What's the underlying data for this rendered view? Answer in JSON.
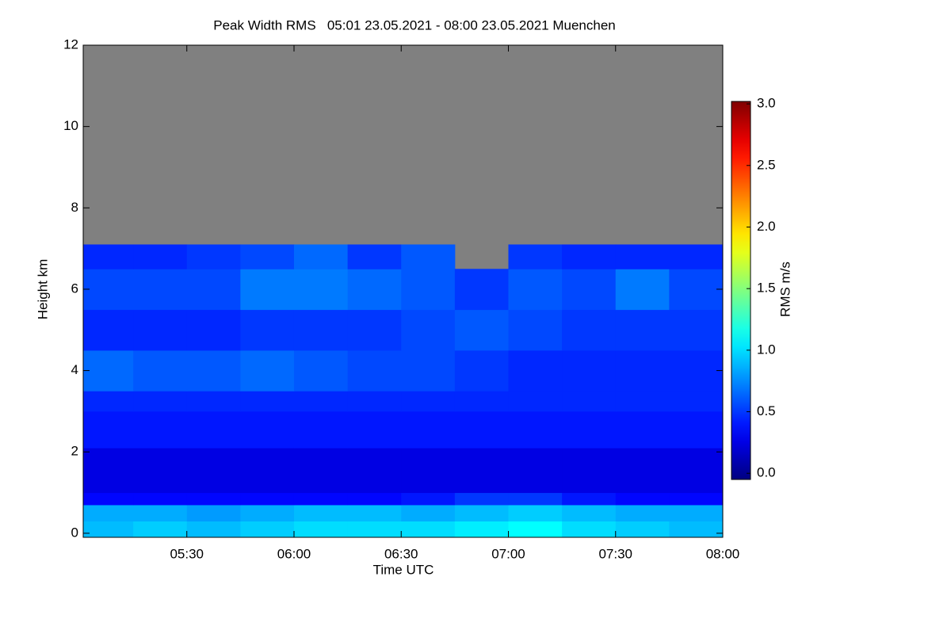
{
  "chart_data": {
    "type": "heatmap",
    "title": "Peak Width RMS   05:01 23.05.2021 - 08:00 23.05.2021 Muenchen",
    "x_label": "Time UTC",
    "y_label": "Height km",
    "colorbar_label": "RMS m/s",
    "colormap": "jet",
    "missing_color": "#808080",
    "x_edges": [
      5.0167,
      5.25,
      5.5,
      5.75,
      6.0,
      6.25,
      6.5,
      6.75,
      7.0,
      7.25,
      7.5,
      7.75,
      8.0
    ],
    "y_edges": [
      -0.1,
      0.3,
      0.7,
      1.0,
      2.1,
      3.0,
      3.5,
      4.5,
      5.5,
      6.5,
      7.1
    ],
    "values": [
      [
        0.9,
        0.95,
        0.9,
        0.95,
        1.0,
        1.0,
        1.0,
        1.05,
        1.1,
        1.0,
        0.95,
        0.9
      ],
      [
        0.85,
        0.85,
        0.8,
        0.85,
        0.9,
        0.9,
        0.85,
        0.9,
        0.95,
        0.9,
        0.85,
        0.85
      ],
      [
        0.35,
        0.35,
        0.35,
        0.35,
        0.35,
        0.35,
        0.4,
        0.5,
        0.5,
        0.4,
        0.35,
        0.35
      ],
      [
        0.25,
        0.25,
        0.25,
        0.25,
        0.25,
        0.25,
        0.25,
        0.25,
        0.25,
        0.25,
        0.25,
        0.25
      ],
      [
        0.4,
        0.4,
        0.4,
        0.4,
        0.4,
        0.4,
        0.4,
        0.4,
        0.4,
        0.4,
        0.4,
        0.4
      ],
      [
        0.45,
        0.45,
        0.45,
        0.45,
        0.45,
        0.45,
        0.45,
        0.45,
        0.45,
        0.45,
        0.45,
        0.45
      ],
      [
        0.65,
        0.6,
        0.6,
        0.65,
        0.6,
        0.55,
        0.55,
        0.5,
        0.45,
        0.45,
        0.45,
        0.45
      ],
      [
        0.45,
        0.45,
        0.45,
        0.5,
        0.5,
        0.5,
        0.55,
        0.6,
        0.55,
        0.5,
        0.5,
        0.5
      ],
      [
        0.55,
        0.55,
        0.55,
        0.7,
        0.7,
        0.65,
        0.6,
        0.5,
        0.6,
        0.55,
        0.7,
        0.55
      ],
      [
        0.45,
        0.45,
        0.5,
        0.55,
        0.65,
        0.5,
        0.6,
        null,
        0.5,
        0.45,
        0.45,
        0.45
      ]
    ],
    "xlim": [
      5.0167,
      8.0
    ],
    "xticks": [
      {
        "value": 5.5,
        "label": "05:30"
      },
      {
        "value": 6.0,
        "label": "06:00"
      },
      {
        "value": 6.5,
        "label": "06:30"
      },
      {
        "value": 7.0,
        "label": "07:00"
      },
      {
        "value": 7.5,
        "label": "07:30"
      },
      {
        "value": 8.0,
        "label": "08:00"
      }
    ],
    "ylim": [
      -0.1,
      12
    ],
    "yticks": [
      0,
      2,
      4,
      6,
      8,
      10,
      12
    ],
    "clim": [
      -0.05,
      3.02
    ],
    "cticks": [
      {
        "value": 0,
        "label": "0.0"
      },
      {
        "value": 0.5,
        "label": "0.5"
      },
      {
        "value": 1,
        "label": "1.0"
      },
      {
        "value": 1.5,
        "label": "1.5"
      },
      {
        "value": 2,
        "label": "2.0"
      },
      {
        "value": 2.5,
        "label": "2.5"
      },
      {
        "value": 3,
        "label": "3.0"
      }
    ]
  }
}
